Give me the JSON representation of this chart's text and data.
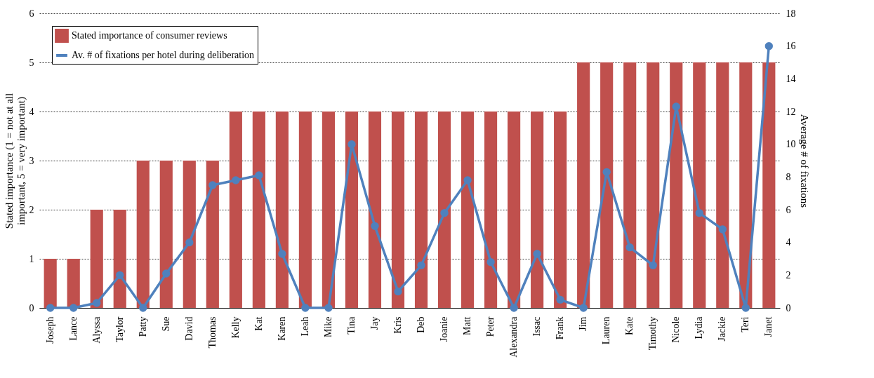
{
  "chart_data": {
    "type": "bar",
    "categories": [
      "Joseph",
      "Lance",
      "Alyssa",
      "Taylor",
      "Patty",
      "Sue",
      "David",
      "Thomas",
      "Kelly",
      "Kat",
      "Karen",
      "Leah",
      "Mike",
      "Tina",
      "Jay",
      "Kris",
      "Deb",
      "Joanie",
      "Matt",
      "Peter",
      "Alexandra",
      "Issac",
      "Frank",
      "Jim",
      "Lauren",
      "Kate",
      "Timothy",
      "Nicole",
      "Lydia",
      "Jackie",
      "Teri",
      "Janet"
    ],
    "series": [
      {
        "name": "Stated importance of consumer reviews",
        "color": "#c0504d",
        "values": [
          1,
          1,
          2,
          2,
          3,
          3,
          3,
          3,
          4,
          4,
          4,
          4,
          4,
          4,
          4,
          4,
          4,
          4,
          4,
          4,
          4,
          4,
          4,
          5,
          5,
          5,
          5,
          5,
          5,
          5,
          5,
          5
        ]
      },
      {
        "name": "Av. # of fixations per hotel during deliberation",
        "type": "line",
        "axis": "y2",
        "color": "#4f81bd",
        "values": [
          0,
          0,
          0.3,
          2,
          0,
          2.1,
          4,
          7.5,
          7.8,
          8.1,
          3.3,
          0,
          0,
          10,
          5,
          1,
          2.6,
          5.8,
          7.8,
          2.8,
          0,
          3.3,
          0.5,
          0,
          8.3,
          3.7,
          2.6,
          12.3,
          5.8,
          4.8,
          0,
          16
        ]
      }
    ],
    "ylabel": "Stated importance (1 = not at all important, 5 = very important)",
    "y2label": "Average # of fixations",
    "ylim": [
      0,
      6
    ],
    "yticks": [
      0,
      1,
      2,
      3,
      4,
      5,
      6
    ],
    "y2lim": [
      0,
      18
    ],
    "y2ticks": [
      0,
      2,
      4,
      6,
      8,
      10,
      12,
      14,
      16,
      18
    ],
    "grid": "y",
    "legend": "top left",
    "marker": "circle"
  }
}
